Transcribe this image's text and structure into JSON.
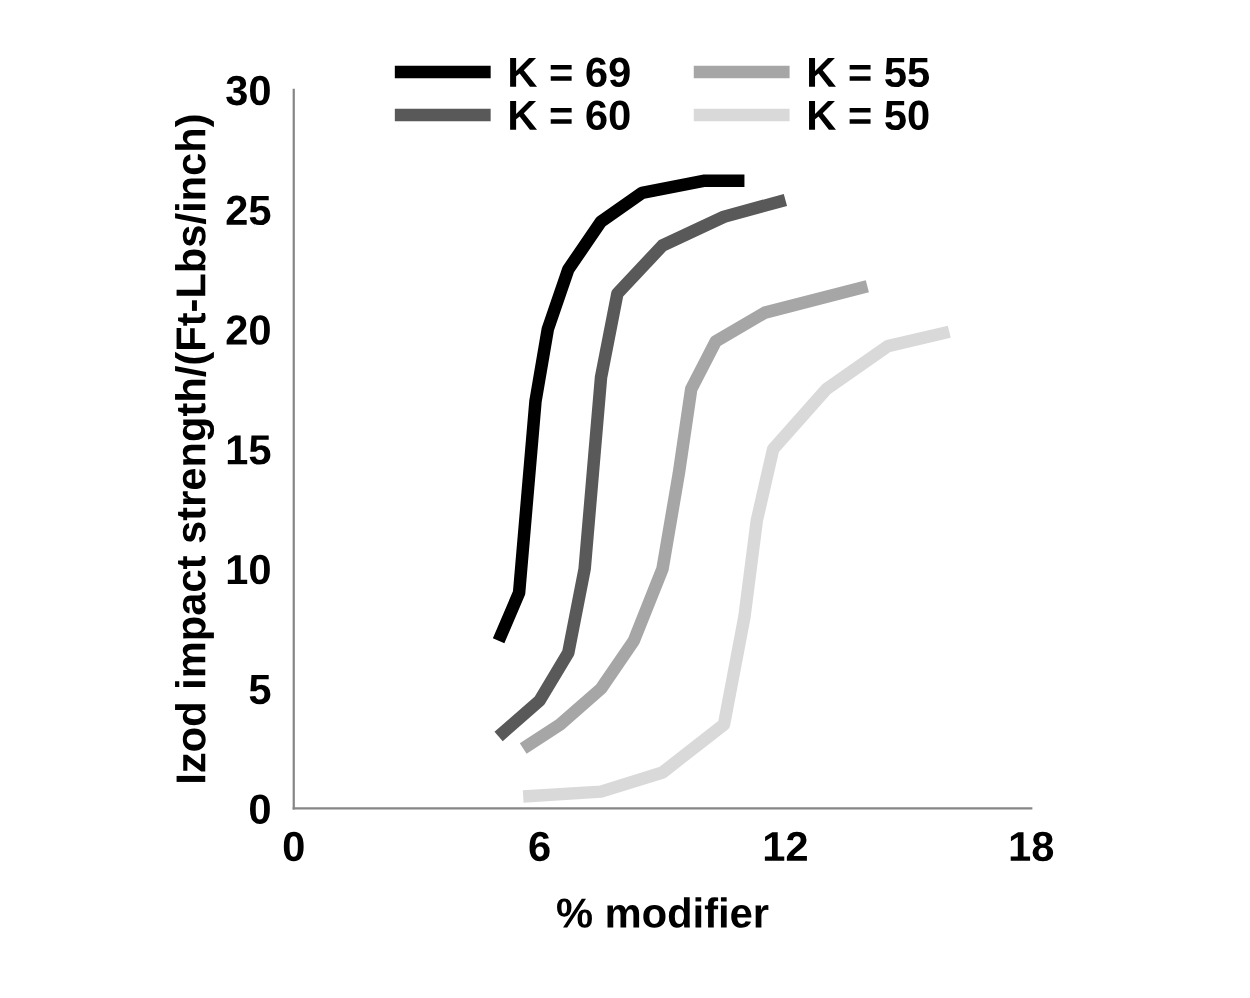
{
  "chart_data": {
    "type": "line",
    "xlabel": "% modifier",
    "ylabel": "Izod impact strength/(Ft-Lbs/inch)",
    "xlim": [
      0,
      18
    ],
    "xticks": [
      0,
      6,
      12,
      18
    ],
    "ylim": [
      0,
      30
    ],
    "yticks": [
      0,
      5,
      10,
      15,
      20,
      25,
      30
    ],
    "legend": "top",
    "grid": false,
    "marker": "none",
    "line_style": "solid",
    "series": [
      {
        "name": "K = 69",
        "color": "#000000",
        "x": [
          5.0,
          5.5,
          5.7,
          5.9,
          6.2,
          6.7,
          7.5,
          8.5,
          10,
          11
        ],
        "values": [
          7,
          9,
          13,
          17,
          20,
          22.5,
          24.5,
          25.7,
          26.2,
          26.2
        ]
      },
      {
        "name": "K = 60",
        "color": "#595959",
        "x": [
          5.0,
          6.0,
          6.7,
          7.1,
          7.3,
          7.5,
          7.9,
          9.0,
          10.5,
          12
        ],
        "values": [
          3,
          4.5,
          6.5,
          10,
          14,
          18,
          21.5,
          23.5,
          24.7,
          25.4
        ]
      },
      {
        "name": "K = 55",
        "color": "#a6a6a6",
        "x": [
          5.6,
          6.5,
          7.5,
          8.3,
          9.0,
          9.4,
          9.7,
          10.3,
          11.5,
          14
        ],
        "values": [
          2.5,
          3.5,
          5,
          7,
          10,
          14,
          17.5,
          19.5,
          20.7,
          21.8
        ]
      },
      {
        "name": "K = 50",
        "color": "#d9d9d9",
        "x": [
          5.6,
          7.5,
          9.0,
          10.5,
          11.0,
          11.3,
          11.7,
          13,
          14.5,
          16
        ],
        "values": [
          0.5,
          0.7,
          1.5,
          3.5,
          8,
          12,
          15,
          17.5,
          19.3,
          19.9
        ]
      }
    ]
  }
}
